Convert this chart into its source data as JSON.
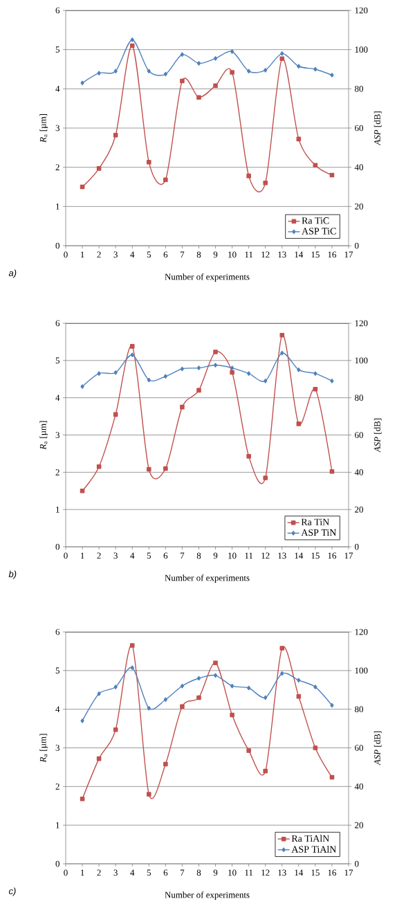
{
  "chart_data": [
    {
      "type": "line",
      "xlabel": "Number of experiments",
      "ylabel": "*R*$_{a}$ [µm]",
      "y2label": "*ASP* [dB]",
      "annotations": [
        "a)"
      ],
      "x": [
        1,
        2,
        3,
        4,
        5,
        6,
        7,
        8,
        9,
        10,
        11,
        12,
        13,
        14,
        15,
        16
      ],
      "xlim": [
        0,
        17
      ],
      "xticks": [
        0,
        1,
        2,
        3,
        4,
        5,
        6,
        7,
        8,
        9,
        10,
        11,
        12,
        13,
        14,
        15,
        16,
        17
      ],
      "ylim": [
        0,
        6
      ],
      "yticks": [
        0,
        1,
        2,
        3,
        4,
        5,
        6
      ],
      "y2lim": [
        0,
        120
      ],
      "y2ticks": [
        0,
        20,
        40,
        60,
        80,
        100,
        120
      ],
      "grid": "y",
      "legend": "bottom right",
      "series": [
        {
          "name": "Ra TiC",
          "color": "#c0504d",
          "marker": "square",
          "values": [
            1.5,
            1.97,
            2.82,
            5.1,
            2.13,
            1.68,
            4.2,
            3.78,
            4.08,
            4.42,
            1.78,
            1.6,
            4.77,
            2.72,
            2.05,
            1.8
          ]
        },
        {
          "name": "ASP TiC",
          "color": "#4f81bd",
          "marker": "diamond",
          "axis": "y2",
          "values": [
            83,
            88,
            89,
            105,
            89,
            87.5,
            97.5,
            93,
            95.5,
            99,
            89,
            89.5,
            98,
            91.5,
            90,
            87
          ]
        }
      ]
    },
    {
      "type": "line",
      "xlabel": "Number of experiments",
      "ylabel": "*R*$_{a}$ [µm]",
      "y2label": "*ASP* [dB]",
      "annotations": [
        "b)"
      ],
      "x": [
        1,
        2,
        3,
        4,
        5,
        6,
        7,
        8,
        9,
        10,
        11,
        12,
        13,
        14,
        15,
        16
      ],
      "xlim": [
        0,
        17
      ],
      "xticks": [
        0,
        1,
        2,
        3,
        4,
        5,
        6,
        7,
        8,
        9,
        10,
        11,
        12,
        13,
        14,
        15,
        16,
        17
      ],
      "ylim": [
        0,
        6
      ],
      "yticks": [
        0,
        1,
        2,
        3,
        4,
        5,
        6
      ],
      "y2lim": [
        0,
        120
      ],
      "y2ticks": [
        0,
        20,
        40,
        60,
        80,
        100,
        120
      ],
      "grid": "y",
      "legend": "bottom right",
      "series": [
        {
          "name": "Ra TiN",
          "color": "#c0504d",
          "marker": "square",
          "values": [
            1.5,
            2.15,
            3.55,
            5.38,
            2.08,
            2.1,
            3.75,
            4.2,
            5.23,
            4.68,
            2.43,
            1.85,
            5.68,
            3.3,
            4.23,
            2.02
          ]
        },
        {
          "name": "ASP TiN",
          "color": "#4f81bd",
          "marker": "diamond",
          "axis": "y2",
          "values": [
            86,
            93,
            93.5,
            103,
            89.5,
            91.5,
            95.5,
            96,
            97.5,
            96,
            93,
            89,
            104,
            95,
            93,
            89
          ]
        }
      ]
    },
    {
      "type": "line",
      "xlabel": "Number of experiments",
      "ylabel": "*R*$_{a}$ [µm]",
      "y2label": "*ASP* [dB]",
      "annotations": [
        "c)"
      ],
      "x": [
        1,
        2,
        3,
        4,
        5,
        6,
        7,
        8,
        9,
        10,
        11,
        12,
        13,
        14,
        15,
        16
      ],
      "xlim": [
        0,
        17
      ],
      "xticks": [
        0,
        1,
        2,
        3,
        4,
        5,
        6,
        7,
        8,
        9,
        10,
        11,
        12,
        13,
        14,
        15,
        16,
        17
      ],
      "ylim": [
        0,
        6
      ],
      "yticks": [
        0,
        1,
        2,
        3,
        4,
        5,
        6
      ],
      "y2lim": [
        0,
        120
      ],
      "y2ticks": [
        0,
        20,
        40,
        60,
        80,
        100,
        120
      ],
      "grid": "y",
      "legend": "bottom right",
      "series": [
        {
          "name": "Ra TiAlN",
          "color": "#c0504d",
          "marker": "square",
          "values": [
            1.68,
            2.72,
            3.47,
            5.65,
            1.8,
            2.58,
            4.07,
            4.3,
            5.2,
            3.85,
            2.93,
            2.4,
            5.58,
            4.33,
            3.0,
            2.24
          ]
        },
        {
          "name": "ASP TiAlN",
          "color": "#4f81bd",
          "marker": "diamond",
          "axis": "y2",
          "values": [
            74,
            88,
            91.5,
            101.5,
            80.5,
            85,
            92,
            96,
            97.5,
            92,
            91,
            86,
            98.5,
            95,
            91.5,
            82
          ]
        }
      ]
    }
  ]
}
